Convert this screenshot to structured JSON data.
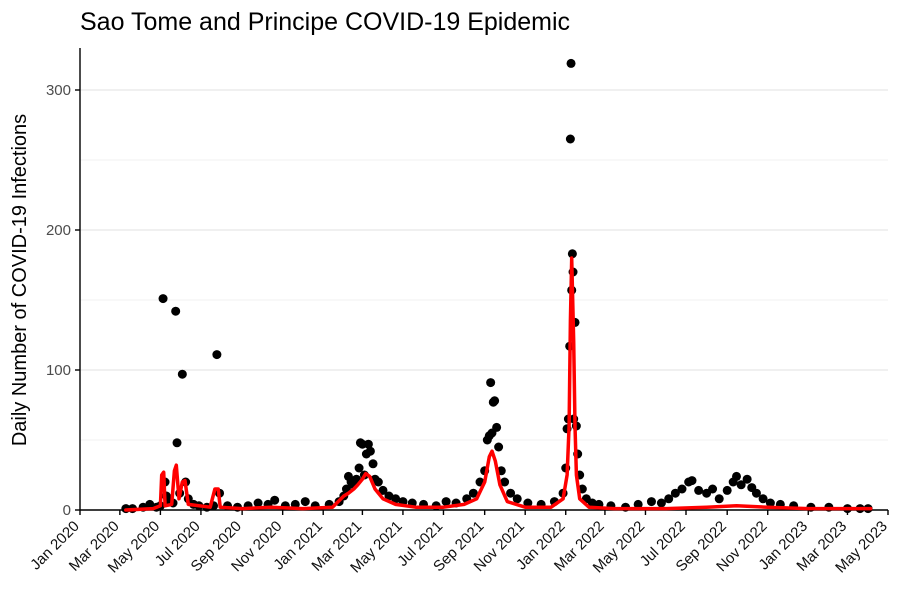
{
  "chart_data": {
    "type": "scatter",
    "title": "Sao Tome and Principe COVID-19 Epidemic",
    "ylabel": "Daily Number of COVID-19 Infections",
    "xlabel": "",
    "xlim": [
      "2020-01-01",
      "2023-05-01"
    ],
    "ylim": [
      0,
      330
    ],
    "y_ticks": [
      0,
      100,
      200,
      300
    ],
    "x_ticks": [
      "Jan 2020",
      "Mar 2020",
      "May 2020",
      "Jul 2020",
      "Sep 2020",
      "Nov 2020",
      "Jan 2021",
      "Mar 2021",
      "May 2021",
      "Jul 2021",
      "Sep 2021",
      "Nov 2021",
      "Jan 2022",
      "Mar 2022",
      "May 2022",
      "Jul 2022",
      "Sep 2022",
      "Nov 2022",
      "Jan 2023",
      "Mar 2023",
      "May 2023"
    ],
    "grid": true,
    "series": [
      {
        "kind": "points",
        "color": "#000000",
        "points": [
          [
            "2020-03-10",
            1
          ],
          [
            "2020-03-20",
            1
          ],
          [
            "2020-04-05",
            2
          ],
          [
            "2020-04-15",
            4
          ],
          [
            "2020-04-25",
            2
          ],
          [
            "2020-05-01",
            3
          ],
          [
            "2020-05-05",
            151
          ],
          [
            "2020-05-08",
            20
          ],
          [
            "2020-05-10",
            10
          ],
          [
            "2020-05-14",
            6
          ],
          [
            "2020-05-20",
            5
          ],
          [
            "2020-05-24",
            142
          ],
          [
            "2020-05-26",
            48
          ],
          [
            "2020-05-30",
            12
          ],
          [
            "2020-06-03",
            97
          ],
          [
            "2020-06-08",
            20
          ],
          [
            "2020-06-12",
            8
          ],
          [
            "2020-06-20",
            4
          ],
          [
            "2020-06-28",
            3
          ],
          [
            "2020-07-10",
            2
          ],
          [
            "2020-07-20",
            3
          ],
          [
            "2020-07-25",
            111
          ],
          [
            "2020-07-29",
            12
          ],
          [
            "2020-08-10",
            3
          ],
          [
            "2020-08-25",
            2
          ],
          [
            "2020-09-10",
            3
          ],
          [
            "2020-09-25",
            5
          ],
          [
            "2020-10-10",
            4
          ],
          [
            "2020-10-20",
            7
          ],
          [
            "2020-11-05",
            3
          ],
          [
            "2020-11-20",
            4
          ],
          [
            "2020-12-05",
            6
          ],
          [
            "2020-12-20",
            3
          ],
          [
            "2021-01-10",
            4
          ],
          [
            "2021-01-25",
            6
          ],
          [
            "2021-02-01",
            10
          ],
          [
            "2021-02-05",
            15
          ],
          [
            "2021-02-08",
            24
          ],
          [
            "2021-02-12",
            20
          ],
          [
            "2021-02-16",
            18
          ],
          [
            "2021-02-20",
            22
          ],
          [
            "2021-02-24",
            30
          ],
          [
            "2021-02-26",
            48
          ],
          [
            "2021-03-01",
            47
          ],
          [
            "2021-03-04",
            25
          ],
          [
            "2021-03-07",
            40
          ],
          [
            "2021-03-10",
            47
          ],
          [
            "2021-03-13",
            42
          ],
          [
            "2021-03-17",
            33
          ],
          [
            "2021-03-20",
            22
          ],
          [
            "2021-03-25",
            20
          ],
          [
            "2021-04-01",
            14
          ],
          [
            "2021-04-10",
            10
          ],
          [
            "2021-04-20",
            8
          ],
          [
            "2021-05-01",
            6
          ],
          [
            "2021-05-15",
            5
          ],
          [
            "2021-06-01",
            4
          ],
          [
            "2021-06-20",
            3
          ],
          [
            "2021-07-05",
            6
          ],
          [
            "2021-07-20",
            5
          ],
          [
            "2021-08-05",
            8
          ],
          [
            "2021-08-15",
            12
          ],
          [
            "2021-08-25",
            20
          ],
          [
            "2021-09-01",
            28
          ],
          [
            "2021-09-05",
            50
          ],
          [
            "2021-09-08",
            53
          ],
          [
            "2021-09-10",
            91
          ],
          [
            "2021-09-12",
            55
          ],
          [
            "2021-09-14",
            77
          ],
          [
            "2021-09-16",
            78
          ],
          [
            "2021-09-19",
            59
          ],
          [
            "2021-09-22",
            45
          ],
          [
            "2021-09-26",
            28
          ],
          [
            "2021-10-01",
            20
          ],
          [
            "2021-10-10",
            12
          ],
          [
            "2021-10-20",
            8
          ],
          [
            "2021-11-05",
            5
          ],
          [
            "2021-11-25",
            4
          ],
          [
            "2021-12-15",
            6
          ],
          [
            "2021-12-28",
            12
          ],
          [
            "2022-01-01",
            30
          ],
          [
            "2022-01-03",
            58
          ],
          [
            "2022-01-05",
            65
          ],
          [
            "2022-01-07",
            117
          ],
          [
            "2022-01-08",
            265
          ],
          [
            "2022-01-09",
            319
          ],
          [
            "2022-01-10",
            157
          ],
          [
            "2022-01-11",
            183
          ],
          [
            "2022-01-12",
            170
          ],
          [
            "2022-01-13",
            65
          ],
          [
            "2022-01-15",
            134
          ],
          [
            "2022-01-17",
            60
          ],
          [
            "2022-01-19",
            40
          ],
          [
            "2022-01-22",
            25
          ],
          [
            "2022-01-26",
            15
          ],
          [
            "2022-02-01",
            8
          ],
          [
            "2022-02-10",
            5
          ],
          [
            "2022-02-20",
            4
          ],
          [
            "2022-03-10",
            3
          ],
          [
            "2022-04-01",
            2
          ],
          [
            "2022-04-20",
            4
          ],
          [
            "2022-05-10",
            6
          ],
          [
            "2022-05-25",
            5
          ],
          [
            "2022-06-05",
            8
          ],
          [
            "2022-06-15",
            12
          ],
          [
            "2022-06-25",
            15
          ],
          [
            "2022-07-05",
            20
          ],
          [
            "2022-07-10",
            21
          ],
          [
            "2022-07-20",
            14
          ],
          [
            "2022-08-01",
            12
          ],
          [
            "2022-08-10",
            15
          ],
          [
            "2022-08-20",
            8
          ],
          [
            "2022-09-01",
            14
          ],
          [
            "2022-09-10",
            20
          ],
          [
            "2022-09-15",
            24
          ],
          [
            "2022-09-22",
            18
          ],
          [
            "2022-10-01",
            22
          ],
          [
            "2022-10-08",
            16
          ],
          [
            "2022-10-15",
            12
          ],
          [
            "2022-10-25",
            8
          ],
          [
            "2022-11-05",
            5
          ],
          [
            "2022-11-20",
            4
          ],
          [
            "2022-12-10",
            3
          ],
          [
            "2023-01-05",
            2
          ],
          [
            "2023-02-01",
            2
          ],
          [
            "2023-03-01",
            1
          ],
          [
            "2023-03-20",
            1
          ],
          [
            "2023-04-01",
            1
          ]
        ]
      },
      {
        "kind": "line",
        "color": "#ff0000",
        "points": [
          [
            "2020-03-10",
            0
          ],
          [
            "2020-04-20",
            1
          ],
          [
            "2020-05-01",
            3
          ],
          [
            "2020-05-03",
            25
          ],
          [
            "2020-05-06",
            27
          ],
          [
            "2020-05-08",
            3
          ],
          [
            "2020-05-18",
            4
          ],
          [
            "2020-05-22",
            28
          ],
          [
            "2020-05-25",
            32
          ],
          [
            "2020-05-29",
            8
          ],
          [
            "2020-06-03",
            20
          ],
          [
            "2020-06-07",
            21
          ],
          [
            "2020-06-12",
            4
          ],
          [
            "2020-07-15",
            2
          ],
          [
            "2020-07-22",
            15
          ],
          [
            "2020-07-27",
            15
          ],
          [
            "2020-07-30",
            2
          ],
          [
            "2020-09-01",
            1
          ],
          [
            "2020-10-15",
            2
          ],
          [
            "2020-12-01",
            1
          ],
          [
            "2021-01-15",
            2
          ],
          [
            "2021-02-01",
            10
          ],
          [
            "2021-02-08",
            12
          ],
          [
            "2021-02-16",
            15
          ],
          [
            "2021-02-22",
            18
          ],
          [
            "2021-03-01",
            22
          ],
          [
            "2021-03-06",
            26
          ],
          [
            "2021-03-12",
            24
          ],
          [
            "2021-03-20",
            15
          ],
          [
            "2021-04-01",
            8
          ],
          [
            "2021-04-20",
            4
          ],
          [
            "2021-05-20",
            2
          ],
          [
            "2021-07-01",
            2
          ],
          [
            "2021-08-01",
            4
          ],
          [
            "2021-08-20",
            8
          ],
          [
            "2021-09-01",
            20
          ],
          [
            "2021-09-08",
            38
          ],
          [
            "2021-09-12",
            42
          ],
          [
            "2021-09-17",
            35
          ],
          [
            "2021-09-24",
            18
          ],
          [
            "2021-10-05",
            6
          ],
          [
            "2021-11-01",
            2
          ],
          [
            "2021-12-10",
            2
          ],
          [
            "2021-12-28",
            8
          ],
          [
            "2022-01-03",
            25
          ],
          [
            "2022-01-06",
            60
          ],
          [
            "2022-01-08",
            135
          ],
          [
            "2022-01-10",
            180
          ],
          [
            "2022-01-13",
            120
          ],
          [
            "2022-01-15",
            60
          ],
          [
            "2022-01-17",
            25
          ],
          [
            "2022-01-22",
            8
          ],
          [
            "2022-02-05",
            2
          ],
          [
            "2022-03-15",
            1
          ],
          [
            "2022-06-01",
            1
          ],
          [
            "2022-08-01",
            2
          ],
          [
            "2022-09-15",
            3
          ],
          [
            "2022-11-01",
            2
          ],
          [
            "2023-01-01",
            1
          ],
          [
            "2023-04-05",
            1
          ]
        ]
      }
    ]
  }
}
